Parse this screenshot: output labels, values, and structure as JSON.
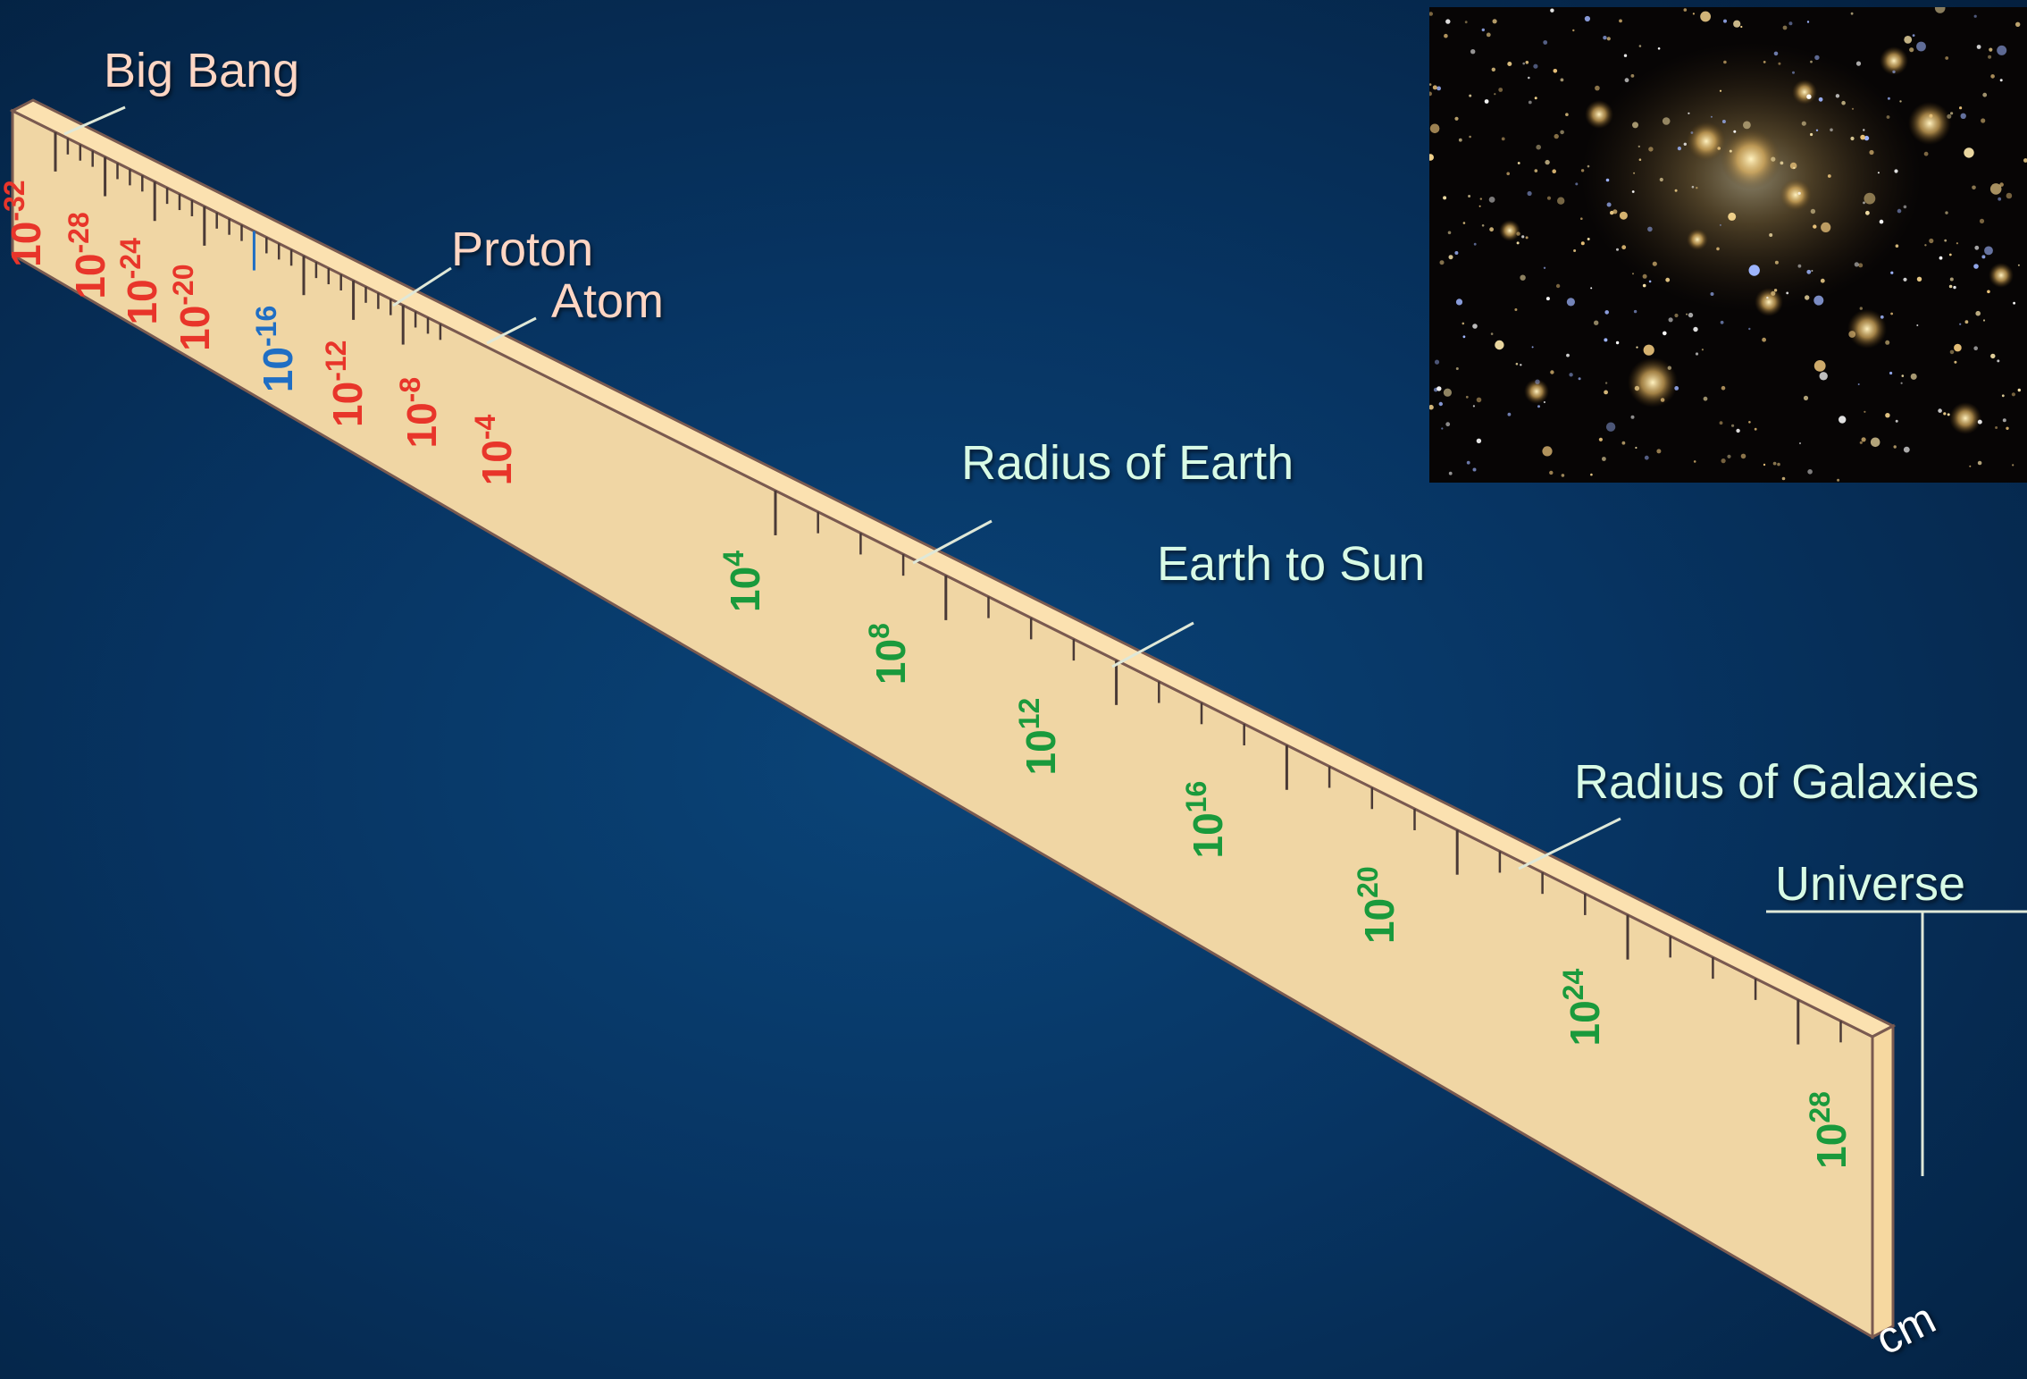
{
  "colors": {
    "background": "#073462",
    "ruler_face": "#f0d6a4",
    "ruler_top": "#fbe1b0",
    "ruler_edge": "#7a5a50",
    "tick_small": "#e8352a",
    "tick_neutral": "#1f6ec4",
    "tick_large": "#1a9a3c",
    "label_salmon": "#ffd6c4",
    "label_mint": "#d8fbe6"
  },
  "callouts": {
    "big_bang": "Big Bang",
    "proton": "Proton",
    "atom": "Atom",
    "radius_of_earth": "Radius of Earth",
    "earth_to_sun": "Earth to Sun",
    "radius_of_galaxies": "Radius of Galaxies",
    "universe": "Universe"
  },
  "unit_label": "cm",
  "scale": {
    "base": "10",
    "exponents": [
      {
        "exp": "-32",
        "color": "#e8352a"
      },
      {
        "exp": "-28",
        "color": "#e8352a"
      },
      {
        "exp": "-24",
        "color": "#e8352a"
      },
      {
        "exp": "-20",
        "color": "#e8352a"
      },
      {
        "exp": "-16",
        "color": "#1f6ec4"
      },
      {
        "exp": "-12",
        "color": "#e8352a"
      },
      {
        "exp": "-8",
        "color": "#e8352a"
      },
      {
        "exp": "-4",
        "color": "#e8352a"
      },
      {
        "exp": "4",
        "color": "#1a9a3c"
      },
      {
        "exp": "8",
        "color": "#1a9a3c"
      },
      {
        "exp": "12",
        "color": "#1a9a3c"
      },
      {
        "exp": "16",
        "color": "#1a9a3c"
      },
      {
        "exp": "20",
        "color": "#1a9a3c"
      },
      {
        "exp": "24",
        "color": "#1a9a3c"
      },
      {
        "exp": "28",
        "color": "#1a9a3c"
      }
    ]
  },
  "inset_photo": {
    "icon": "galaxy-cluster-photo"
  }
}
